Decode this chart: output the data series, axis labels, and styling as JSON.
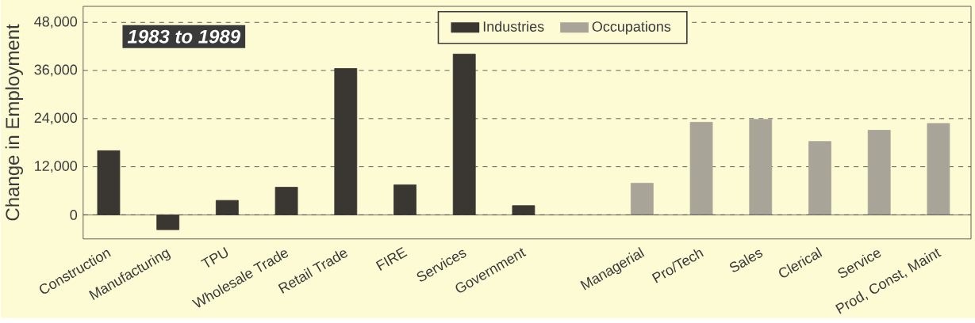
{
  "chart_data": {
    "type": "bar",
    "ylabel": "Change in Employment",
    "categories": [
      "Construction",
      "Manufacturing",
      "TPU",
      "Wholesale Trade",
      "Retail Trade",
      "FIRE",
      "Services",
      "Government",
      null,
      "Managerial",
      "Pro/Tech",
      "Sales",
      "Clerical",
      "Service",
      "Prod, Const, Maint"
    ],
    "series": [
      {
        "name": "Industries",
        "color": "#3a3631",
        "values": [
          16000,
          -3700,
          3600,
          6900,
          36500,
          7500,
          40100,
          2300,
          null,
          null,
          null,
          null,
          null,
          null,
          null
        ]
      },
      {
        "name": "Occupations",
        "color": "#a8a598",
        "values": [
          null,
          null,
          null,
          null,
          null,
          null,
          null,
          null,
          null,
          7900,
          23100,
          23800,
          18300,
          21100,
          22800
        ]
      }
    ],
    "ylim": [
      -6000,
      52000
    ],
    "yticks": [
      0,
      {
        "value": 12000,
        "label": "12,000"
      },
      {
        "value": 24000,
        "label": "24,000"
      },
      {
        "value": 36000,
        "label": "36,000"
      },
      {
        "value": 48000,
        "label": "48,000"
      }
    ],
    "grid": "y",
    "legend": "top",
    "annotations": [
      "1983 to 1989"
    ]
  }
}
